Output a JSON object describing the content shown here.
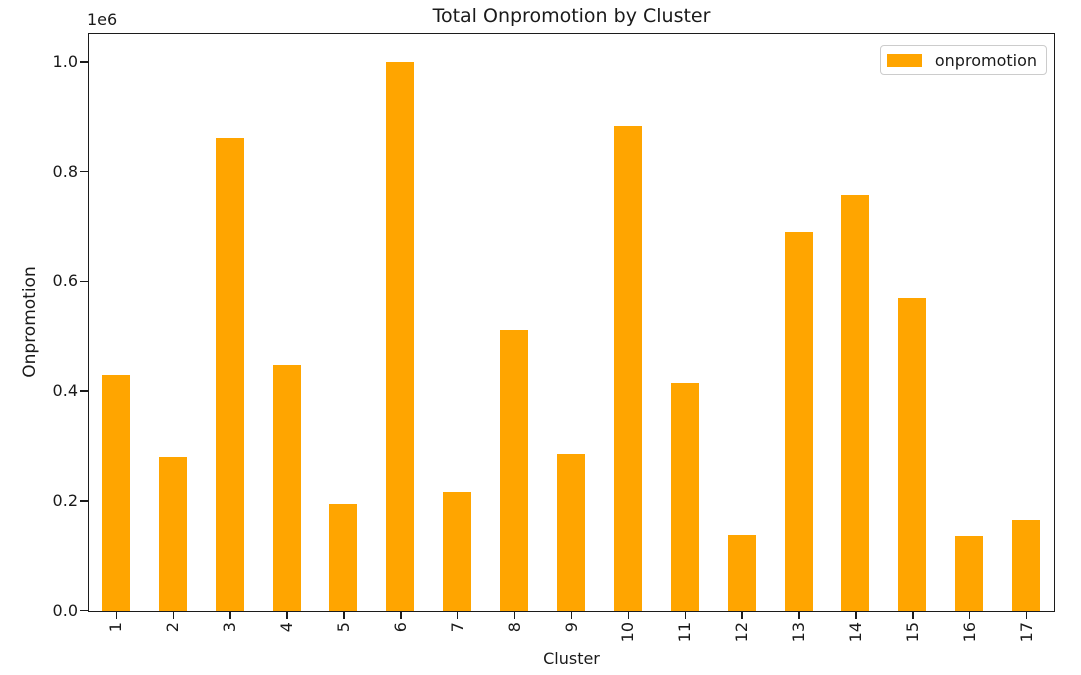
{
  "chart_data": {
    "type": "bar",
    "title": "Total Onpromotion by Cluster",
    "xlabel": "Cluster",
    "ylabel": "Onpromotion",
    "y_offset_text": "1e6",
    "categories": [
      "1",
      "2",
      "3",
      "4",
      "5",
      "6",
      "7",
      "8",
      "9",
      "10",
      "11",
      "12",
      "13",
      "14",
      "15",
      "16",
      "17"
    ],
    "series": [
      {
        "name": "onpromotion",
        "color": "#FFA500",
        "values": [
          431000,
          280000,
          862000,
          448000,
          195000,
          1000000,
          217000,
          512000,
          286000,
          885000,
          415000,
          139000,
          691000,
          759000,
          571000,
          137000,
          166000
        ]
      }
    ],
    "ylim": [
      0,
      1050000
    ],
    "yticks": [
      0,
      200000,
      400000,
      600000,
      800000,
      1000000
    ],
    "ytick_labels": [
      "0.0",
      "0.2",
      "0.4",
      "0.6",
      "0.8",
      "1.0"
    ],
    "xtick_rotation_deg": 90,
    "grid": false,
    "legend_position": "upper right",
    "background_color": "#ffffff",
    "spine_color": "#1c1c1c"
  },
  "legend": {
    "label": "onpromotion",
    "swatch_color": "#FFA500"
  }
}
